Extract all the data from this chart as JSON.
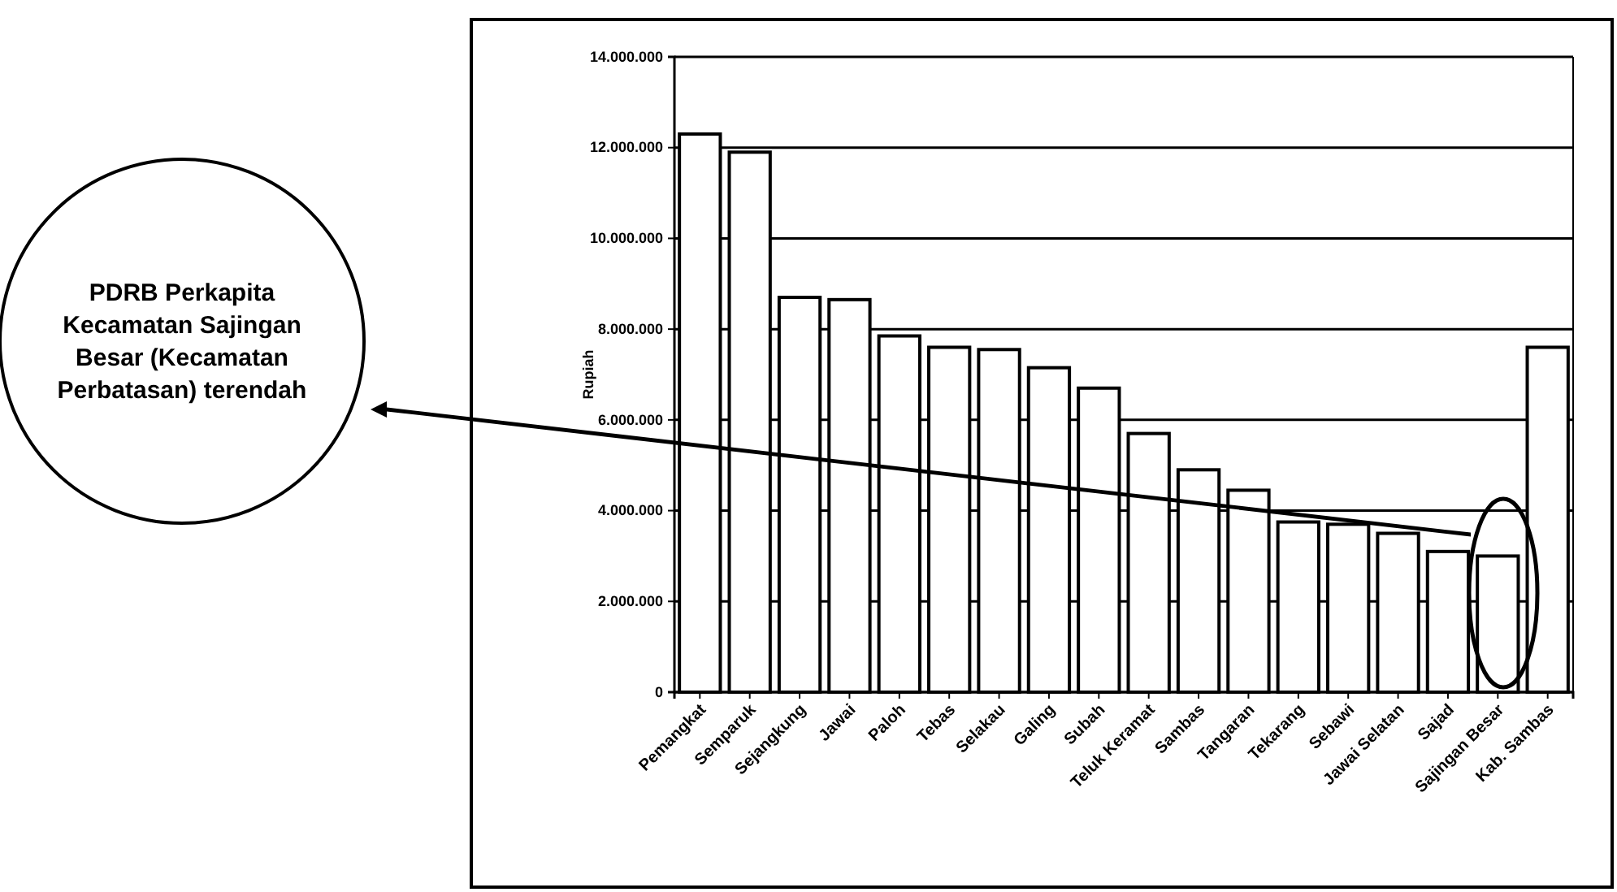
{
  "chart_data": {
    "type": "bar",
    "ylabel": "Rupiah",
    "categories": [
      "Pemangkat",
      "Semparuk",
      "Sejangkung",
      "Jawai",
      "Paloh",
      "Tebas",
      "Selakau",
      "Galing",
      "Subah",
      "Teluk Keramat",
      "Sambas",
      "Tangaran",
      "Tekarang",
      "Sebawi",
      "Jawai Selatan",
      "Sajad",
      "Sajingan Besar",
      "Kab. Sambas"
    ],
    "values": [
      12300000,
      11900000,
      8700000,
      8650000,
      7850000,
      7600000,
      7550000,
      7150000,
      6700000,
      5700000,
      4900000,
      4450000,
      3750000,
      3700000,
      3500000,
      3100000,
      3000000,
      7600000
    ],
    "color": "#ffffff",
    "ylim": [
      0,
      14000000
    ],
    "yticks": [
      {
        "value": 0,
        "label": "0"
      },
      {
        "value": 2000000,
        "label": "2.000.000"
      },
      {
        "value": 4000000,
        "label": "4.000.000"
      },
      {
        "value": 6000000,
        "label": "6.000.000"
      },
      {
        "value": 8000000,
        "label": "8.000.000"
      },
      {
        "value": 10000000,
        "label": "10.000.000"
      },
      {
        "value": 12000000,
        "label": "12.000.000"
      },
      {
        "value": 14000000,
        "label": "14.000.000"
      }
    ],
    "grid": "y",
    "annotations": [
      "PDRB Perkapita Kecamatan Sajingan Besar (Kecamatan Perbatasan) terendah"
    ]
  }
}
